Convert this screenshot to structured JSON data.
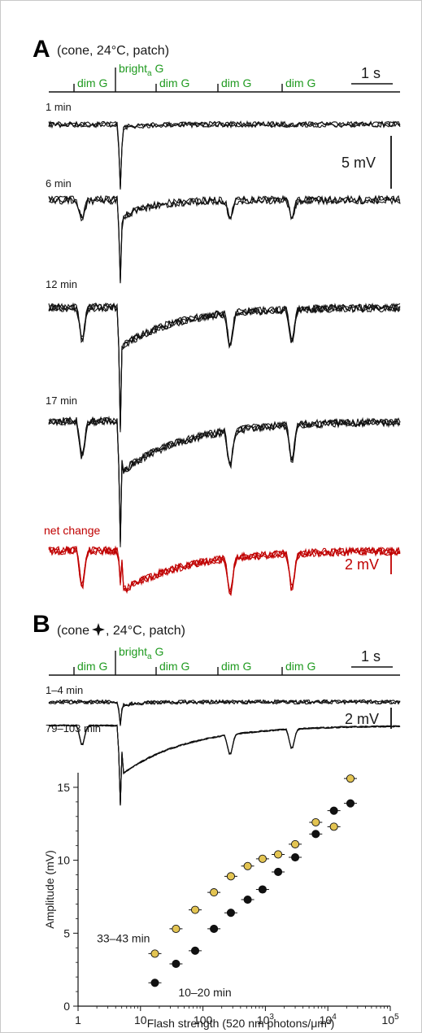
{
  "panel_a": {
    "letter": "A",
    "condition": "(cone, 24°C, patch)",
    "stim": {
      "dim": "dim G",
      "bright_base": "bright",
      "bright_sub": "a",
      "bright_tail": " G"
    },
    "time_scale": "1 s",
    "volt_scale": "5 mV",
    "net_scale": "2 mV",
    "trace_labels": [
      "1 min",
      "6 min",
      "12 min",
      "17 min",
      "net change"
    ]
  },
  "panel_b": {
    "letter": "B",
    "condition_pre": "(cone",
    "condition_post": ", 24°C, patch)",
    "stim": {
      "dim": "dim G",
      "bright_base": "bright",
      "bright_sub": "a",
      "bright_tail": " G"
    },
    "time_scale": "1 s",
    "volt_scale": "2 mV",
    "trace_labels": [
      "1–4 min",
      "79–103 min"
    ]
  },
  "colors": {
    "trace": "#111111",
    "stimulus_text": "#1f9a1f",
    "net_change": "#c00000",
    "marker_early": "#111111",
    "marker_late": "#e3c452"
  },
  "chart_data": {
    "type": "scatter",
    "xlabel": "Flash strength (520 nm photons/μm²)",
    "ylabel": "Amplitude (mV)",
    "x_scale": "log",
    "xlim": [
      1,
      100000
    ],
    "ylim": [
      0,
      16
    ],
    "x_ticks": [
      {
        "base": "1",
        "exp": ""
      },
      {
        "base": "10",
        "exp": ""
      },
      {
        "base": "100",
        "exp": ""
      },
      {
        "base": "10",
        "exp": "3"
      },
      {
        "base": "10",
        "exp": "4"
      },
      {
        "base": "10",
        "exp": "5"
      }
    ],
    "y_ticks": [
      "0",
      "5",
      "10",
      "15"
    ],
    "series": [
      {
        "name": "10–20 min",
        "color": "#111111",
        "x": [
          17,
          37,
          75,
          150,
          280,
          520,
          900,
          1600,
          3000,
          6400,
          12500,
          23000
        ],
        "y": [
          1.6,
          2.9,
          3.8,
          5.3,
          6.4,
          7.3,
          8.0,
          9.2,
          10.2,
          11.8,
          13.4,
          13.9
        ]
      },
      {
        "name": "33–43 min",
        "color": "#e3c452",
        "x": [
          17,
          37,
          75,
          150,
          280,
          520,
          900,
          1600,
          3000,
          6400,
          12500,
          23000
        ],
        "y": [
          3.6,
          5.3,
          6.6,
          7.8,
          8.9,
          9.6,
          10.1,
          10.4,
          11.1,
          12.6,
          12.3,
          15.6
        ]
      }
    ]
  }
}
